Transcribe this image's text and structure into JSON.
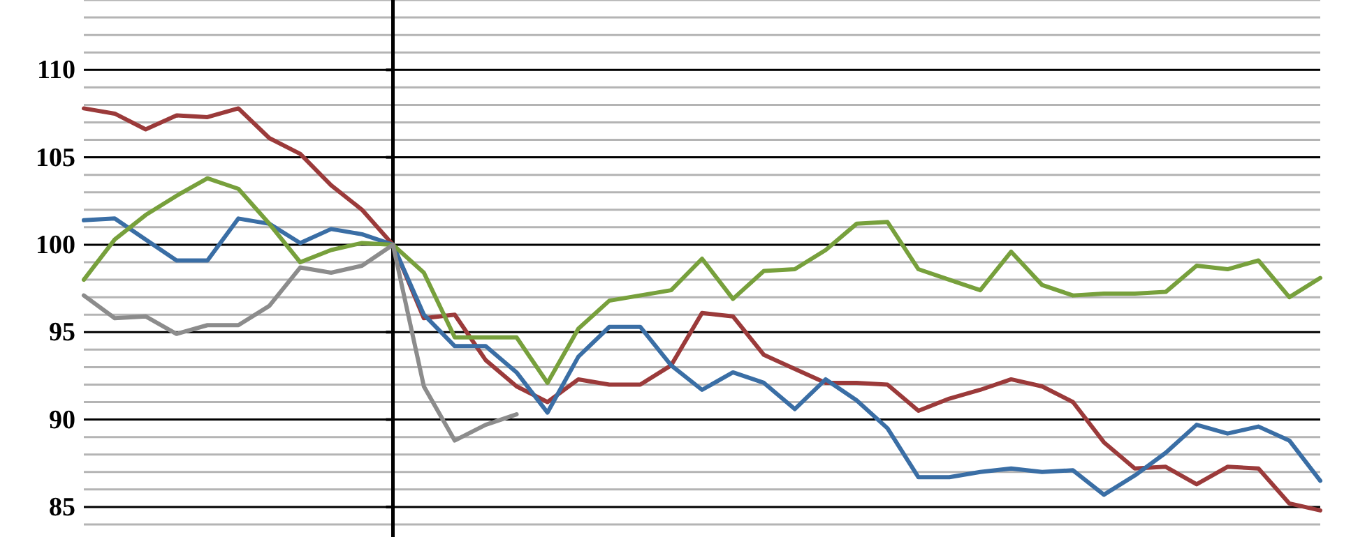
{
  "chart_data": {
    "type": "line",
    "categories": [
      null,
      null,
      null,
      null,
      null,
      null,
      null,
      null,
      null,
      null,
      null,
      null,
      null,
      null,
      null,
      null,
      null,
      null,
      null,
      null,
      null,
      null,
      null,
      null,
      null,
      null,
      null,
      null,
      null,
      null,
      null,
      null,
      null,
      null,
      null,
      null,
      null,
      null,
      null,
      null,
      null
    ],
    "ylim": [
      84,
      114
    ],
    "yticks": [
      {
        "value": 84,
        "label": null
      },
      85,
      {
        "value": 86,
        "label": null
      },
      {
        "value": 87,
        "label": null
      },
      {
        "value": 88,
        "label": null
      },
      {
        "value": 89,
        "label": null
      },
      90,
      {
        "value": 91,
        "label": null
      },
      {
        "value": 92,
        "label": null
      },
      {
        "value": 93,
        "label": null
      },
      {
        "value": 94,
        "label": null
      },
      95,
      {
        "value": 96,
        "label": null
      },
      {
        "value": 97,
        "label": null
      },
      {
        "value": 98,
        "label": null
      },
      {
        "value": 99,
        "label": null
      },
      100,
      {
        "value": 101,
        "label": null
      },
      {
        "value": 102,
        "label": null
      },
      {
        "value": 103,
        "label": null
      },
      {
        "value": 104,
        "label": null
      },
      105,
      {
        "value": 106,
        "label": null
      },
      {
        "value": 107,
        "label": null
      },
      {
        "value": 108,
        "label": null
      },
      {
        "value": 109,
        "label": null
      },
      110,
      {
        "value": 111,
        "label": null
      },
      {
        "value": 112,
        "label": null
      },
      {
        "value": 113,
        "label": null
      },
      {
        "value": 114,
        "label": null
      }
    ],
    "grid": "y",
    "tick_labels": "y",
    "marker": "none",
    "line_style": "solid",
    "series": [
      {
        "color": "#9b3a3a",
        "values": [
          107.8,
          107.5,
          106.6,
          107.4,
          107.3,
          107.8,
          106.1,
          105.2,
          103.4,
          102.0,
          100,
          95.8,
          96.0,
          93.4,
          91.9,
          91.0,
          92.3,
          92.0,
          92.0,
          93.1,
          96.1,
          95.9,
          93.7,
          92.9,
          92.1,
          92.1,
          92.0,
          90.5,
          91.2,
          91.7,
          92.3,
          91.9,
          91.0,
          88.7,
          87.2,
          87.3,
          86.3,
          87.3,
          87.2,
          85.2,
          84.8
        ]
      },
      {
        "color": "#3a6ea5",
        "values": [
          101.4,
          101.5,
          100.3,
          99.1,
          99.1,
          101.5,
          101.2,
          100.1,
          100.9,
          100.6,
          100,
          96.0,
          94.2,
          94.2,
          92.7,
          90.4,
          93.6,
          95.3,
          95.3,
          93.1,
          91.7,
          92.7,
          92.1,
          90.6,
          92.3,
          91.1,
          89.5,
          86.7,
          86.7,
          87.0,
          87.2,
          87.0,
          87.1,
          85.7,
          86.8,
          88.1,
          89.7,
          89.2,
          89.6,
          88.8,
          86.5
        ]
      },
      {
        "color": "#77a03c",
        "values": [
          98.0,
          100.3,
          101.7,
          102.8,
          103.8,
          103.2,
          101.2,
          99.0,
          99.7,
          100.1,
          100,
          98.4,
          94.7,
          94.7,
          94.7,
          92.1,
          95.2,
          96.8,
          97.1,
          97.4,
          99.2,
          96.9,
          98.5,
          98.6,
          99.7,
          101.2,
          101.3,
          98.6,
          98.0,
          97.4,
          99.6,
          97.7,
          97.1,
          97.2,
          97.2,
          97.3,
          98.8,
          98.6,
          99.1,
          97.0,
          98.1
        ]
      },
      {
        "color": "#8c8c8c",
        "values": [
          97.1,
          95.8,
          95.9,
          94.9,
          95.4,
          95.4,
          96.5,
          98.7,
          98.4,
          98.8,
          100,
          91.9,
          88.8,
          89.7,
          90.3,
          null,
          null,
          null,
          null,
          null,
          null,
          null,
          null,
          null,
          null,
          null,
          null,
          null,
          null,
          null,
          null,
          null,
          null,
          null,
          null,
          null,
          null,
          null,
          null,
          null,
          null
        ]
      }
    ]
  }
}
